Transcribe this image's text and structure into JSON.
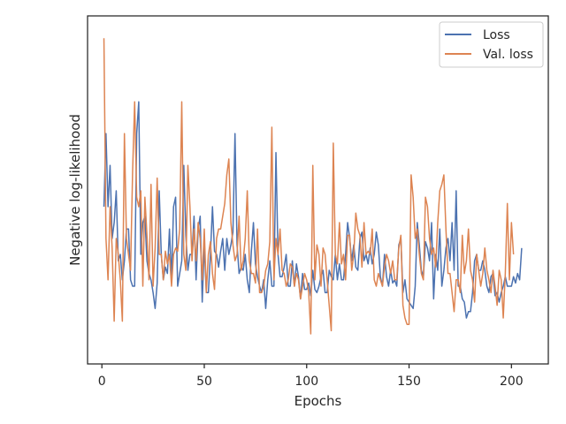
{
  "chart_data": {
    "type": "line",
    "title": "",
    "xlabel": "Epochs",
    "ylabel": "Negative log-likelihood",
    "xlim": [
      -7,
      218
    ],
    "ylim": [
      0,
      1
    ],
    "y_ticks_shown": false,
    "x_ticks": [
      0,
      50,
      100,
      150,
      200
    ],
    "grid": false,
    "legend_position": "top-right",
    "x_start": 1,
    "series": [
      {
        "name": "Loss",
        "color": "#4c72b0",
        "values": [
          0.45,
          0.68,
          0.45,
          0.58,
          0.35,
          0.4,
          0.5,
          0.28,
          0.3,
          0.22,
          0.28,
          0.38,
          0.38,
          0.22,
          0.2,
          0.2,
          0.68,
          0.78,
          0.3,
          0.4,
          0.42,
          0.28,
          0.24,
          0.22,
          0.18,
          0.13,
          0.21,
          0.5,
          0.3,
          0.22,
          0.26,
          0.24,
          0.38,
          0.22,
          0.45,
          0.48,
          0.2,
          0.24,
          0.28,
          0.58,
          0.36,
          0.25,
          0.3,
          0.3,
          0.42,
          0.22,
          0.38,
          0.42,
          0.15,
          0.33,
          0.18,
          0.18,
          0.3,
          0.45,
          0.31,
          0.3,
          0.26,
          0.31,
          0.35,
          0.25,
          0.35,
          0.3,
          0.33,
          0.37,
          0.68,
          0.33,
          0.24,
          0.26,
          0.25,
          0.3,
          0.22,
          0.18,
          0.31,
          0.4,
          0.27,
          0.23,
          0.2,
          0.18,
          0.22,
          0.13,
          0.22,
          0.28,
          0.2,
          0.2,
          0.62,
          0.3,
          0.23,
          0.23,
          0.26,
          0.3,
          0.2,
          0.2,
          0.28,
          0.2,
          0.27,
          0.23,
          0.16,
          0.24,
          0.19,
          0.19,
          0.21,
          0.17,
          0.25,
          0.19,
          0.18,
          0.2,
          0.23,
          0.25,
          0.18,
          0.18,
          0.25,
          0.23,
          0.22,
          0.3,
          0.22,
          0.27,
          0.22,
          0.22,
          0.3,
          0.4,
          0.35,
          0.28,
          0.33,
          0.26,
          0.25,
          0.35,
          0.37,
          0.28,
          0.3,
          0.27,
          0.32,
          0.27,
          0.3,
          0.37,
          0.33,
          0.23,
          0.2,
          0.3,
          0.23,
          0.2,
          0.25,
          0.21,
          0.22,
          0.2,
          0.33,
          0.35,
          0.18,
          0.22,
          0.16,
          0.15,
          0.14,
          0.13,
          0.2,
          0.4,
          0.33,
          0.25,
          0.23,
          0.34,
          0.32,
          0.28,
          0.4,
          0.16,
          0.3,
          0.25,
          0.38,
          0.2,
          0.25,
          0.32,
          0.35,
          0.28,
          0.4,
          0.25,
          0.5,
          0.2,
          0.2,
          0.16,
          0.15,
          0.1,
          0.12,
          0.12,
          0.18,
          0.28,
          0.3,
          0.25,
          0.25,
          0.28,
          0.25,
          0.2,
          0.18,
          0.23,
          0.24,
          0.17,
          0.18,
          0.15,
          0.18,
          0.2,
          0.23,
          0.2,
          0.2,
          0.2,
          0.23,
          0.21,
          0.24,
          0.22,
          0.32
        ]
      },
      {
        "name": "Val. loss",
        "color": "#dd8452",
        "values": [
          0.98,
          0.35,
          0.22,
          0.45,
          0.32,
          0.09,
          0.35,
          0.3,
          0.22,
          0.09,
          0.68,
          0.35,
          0.3,
          0.25,
          0.56,
          0.78,
          0.48,
          0.45,
          0.5,
          0.2,
          0.48,
          0.36,
          0.22,
          0.52,
          0.2,
          0.32,
          0.54,
          0.3,
          0.3,
          0.22,
          0.31,
          0.27,
          0.3,
          0.2,
          0.3,
          0.32,
          0.31,
          0.38,
          0.78,
          0.3,
          0.25,
          0.58,
          0.45,
          0.28,
          0.38,
          0.28,
          0.4,
          0.35,
          0.22,
          0.38,
          0.18,
          0.3,
          0.34,
          0.24,
          0.19,
          0.35,
          0.38,
          0.38,
          0.42,
          0.46,
          0.55,
          0.6,
          0.4,
          0.33,
          0.28,
          0.3,
          0.42,
          0.25,
          0.28,
          0.35,
          0.5,
          0.28,
          0.24,
          0.24,
          0.21,
          0.38,
          0.18,
          0.18,
          0.2,
          0.25,
          0.27,
          0.34,
          0.7,
          0.22,
          0.35,
          0.3,
          0.38,
          0.25,
          0.24,
          0.2,
          0.22,
          0.27,
          0.26,
          0.2,
          0.24,
          0.22,
          0.16,
          0.2,
          0.24,
          0.22,
          0.18,
          0.05,
          0.58,
          0.22,
          0.33,
          0.3,
          0.2,
          0.32,
          0.3,
          0.22,
          0.14,
          0.06,
          0.65,
          0.3,
          0.27,
          0.4,
          0.27,
          0.3,
          0.22,
          0.36,
          0.36,
          0.25,
          0.3,
          0.43,
          0.38,
          0.36,
          0.26,
          0.4,
          0.3,
          0.31,
          0.3,
          0.38,
          0.22,
          0.2,
          0.24,
          0.22,
          0.2,
          0.26,
          0.3,
          0.28,
          0.24,
          0.28,
          0.22,
          0.22,
          0.32,
          0.36,
          0.14,
          0.1,
          0.08,
          0.08,
          0.55,
          0.48,
          0.35,
          0.38,
          0.3,
          0.24,
          0.22,
          0.48,
          0.45,
          0.35,
          0.3,
          0.32,
          0.26,
          0.4,
          0.5,
          0.52,
          0.55,
          0.38,
          0.24,
          0.24,
          0.18,
          0.12,
          0.22,
          0.22,
          0.18,
          0.36,
          0.24,
          0.28,
          0.38,
          0.25,
          0.22,
          0.15,
          0.3,
          0.25,
          0.2,
          0.24,
          0.32,
          0.25,
          0.22,
          0.18,
          0.25,
          0.2,
          0.14,
          0.25,
          0.22,
          0.1,
          0.24,
          0.46,
          0.22,
          0.4,
          0.3
        ]
      }
    ]
  }
}
